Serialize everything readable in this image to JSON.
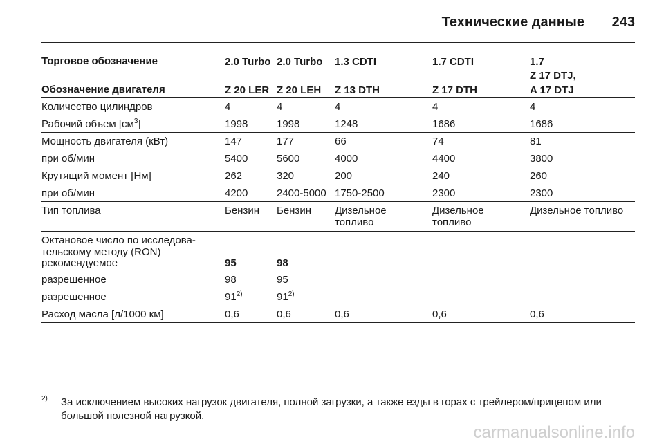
{
  "header": {
    "title": "Технические данные",
    "page": "243"
  },
  "table": {
    "head": [
      {
        "label": "Торговое обозначение",
        "values": [
          "2.0 Turbo",
          "2.0 Turbo",
          "1.3 CDTI",
          "1.7 CDTI",
          "1.7\nZ 17 DTJ,"
        ]
      },
      {
        "label": "Обозначение двигателя",
        "values": [
          "Z 20 LER",
          "Z 20 LEH",
          "Z 13 DTH",
          "Z 17 DTH",
          "A 17 DTJ"
        ]
      }
    ],
    "rows": [
      {
        "label": "Количество цилиндров",
        "values": [
          "4",
          "4",
          "4",
          "4",
          "4"
        ]
      },
      {
        "label": {
          "text": "Рабочий объем [см",
          "sup": "3",
          "after": "]"
        },
        "values": [
          "1998",
          "1998",
          "1248",
          "1686",
          "1686"
        ]
      },
      {
        "label": "Мощность двигателя (кВт)",
        "values": [
          "147",
          "177",
          "66",
          "74",
          "81"
        ]
      },
      {
        "label": "при об/мин",
        "values": [
          "5400",
          "5600",
          "4000",
          "4400",
          "3800"
        ]
      },
      {
        "label": "Крутящий момент [Нм]",
        "values": [
          "262",
          "320",
          "200",
          "240",
          "260"
        ]
      },
      {
        "label": "при об/мин",
        "values": [
          "4200",
          "2400-5000",
          "1750-2500",
          "2300",
          "2300"
        ]
      },
      {
        "label": "Тип топлива",
        "values": [
          "Бензин",
          "Бензин",
          "Дизельное\nтопливо",
          "Дизельное\nтопливо",
          "Дизельное топливо"
        ]
      },
      {
        "label": "Октановое число по исследова-\nтельскому методу (RON)",
        "values": []
      },
      {
        "label": "рекомендуемое",
        "values": [
          "95",
          "98"
        ],
        "bold": true
      },
      {
        "label": "разрешенное",
        "values": [
          "98",
          "95"
        ]
      },
      {
        "label": "разрешенное",
        "values": [
          {
            "text": "91",
            "sup": "2)"
          },
          {
            "text": "91",
            "sup": "2)"
          }
        ]
      },
      {
        "label": "Расход масла [л/1000 км]",
        "values": [
          "0,6",
          "0,6",
          "0,6",
          "0,6",
          "0,6"
        ]
      }
    ]
  },
  "footnote": {
    "mark": "2)",
    "text": "За исключением высоких нагрузок двигателя, полной загрузки, а также езды в горах с трейлером/прицепом или большой полезной нагрузкой."
  },
  "watermark": "carmanualsonline.info"
}
